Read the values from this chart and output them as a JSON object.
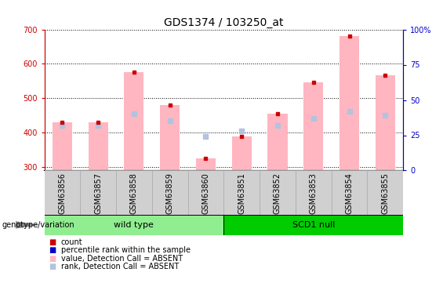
{
  "title": "GDS1374 / 103250_at",
  "samples": [
    "GSM63856",
    "GSM63857",
    "GSM63858",
    "GSM63859",
    "GSM63860",
    "GSM63851",
    "GSM63852",
    "GSM63853",
    "GSM63854",
    "GSM63855"
  ],
  "values_absent": [
    430,
    430,
    575,
    480,
    325,
    390,
    455,
    547,
    680,
    567
  ],
  "rank_absent": [
    420,
    422,
    455,
    435,
    390,
    405,
    420,
    442,
    463,
    450
  ],
  "ylim_left": [
    290,
    700
  ],
  "ylim_right": [
    0,
    100
  ],
  "yticks_left": [
    300,
    400,
    500,
    600,
    700
  ],
  "yticks_right": [
    0,
    25,
    50,
    75,
    100
  ],
  "groups": [
    {
      "label": "wild type",
      "indices": [
        0,
        1,
        2,
        3,
        4
      ],
      "color": "#90EE90"
    },
    {
      "label": "SCD1 null",
      "indices": [
        5,
        6,
        7,
        8,
        9
      ],
      "color": "#00CC00"
    }
  ],
  "bar_color_absent": "#FFB6C1",
  "rank_color_absent": "#B0C4DE",
  "count_color": "#CC0000",
  "percentile_color": "#0000CC",
  "baseline": 290,
  "legend_items": [
    {
      "label": "count",
      "color": "#CC0000"
    },
    {
      "label": "percentile rank within the sample",
      "color": "#0000CC"
    },
    {
      "label": "value, Detection Call = ABSENT",
      "color": "#FFB6C1"
    },
    {
      "label": "rank, Detection Call = ABSENT",
      "color": "#B0C4DE"
    }
  ],
  "ylabel_left_color": "#CC0000",
  "ylabel_right_color": "#0000CC",
  "grid_color": "#000000",
  "bg_color": "#FFFFFF",
  "title_fontsize": 10,
  "tick_label_fontsize": 7,
  "bar_width": 0.55,
  "gray_box_color": "#D0D0D0",
  "gray_box_edge": "#AAAAAA"
}
